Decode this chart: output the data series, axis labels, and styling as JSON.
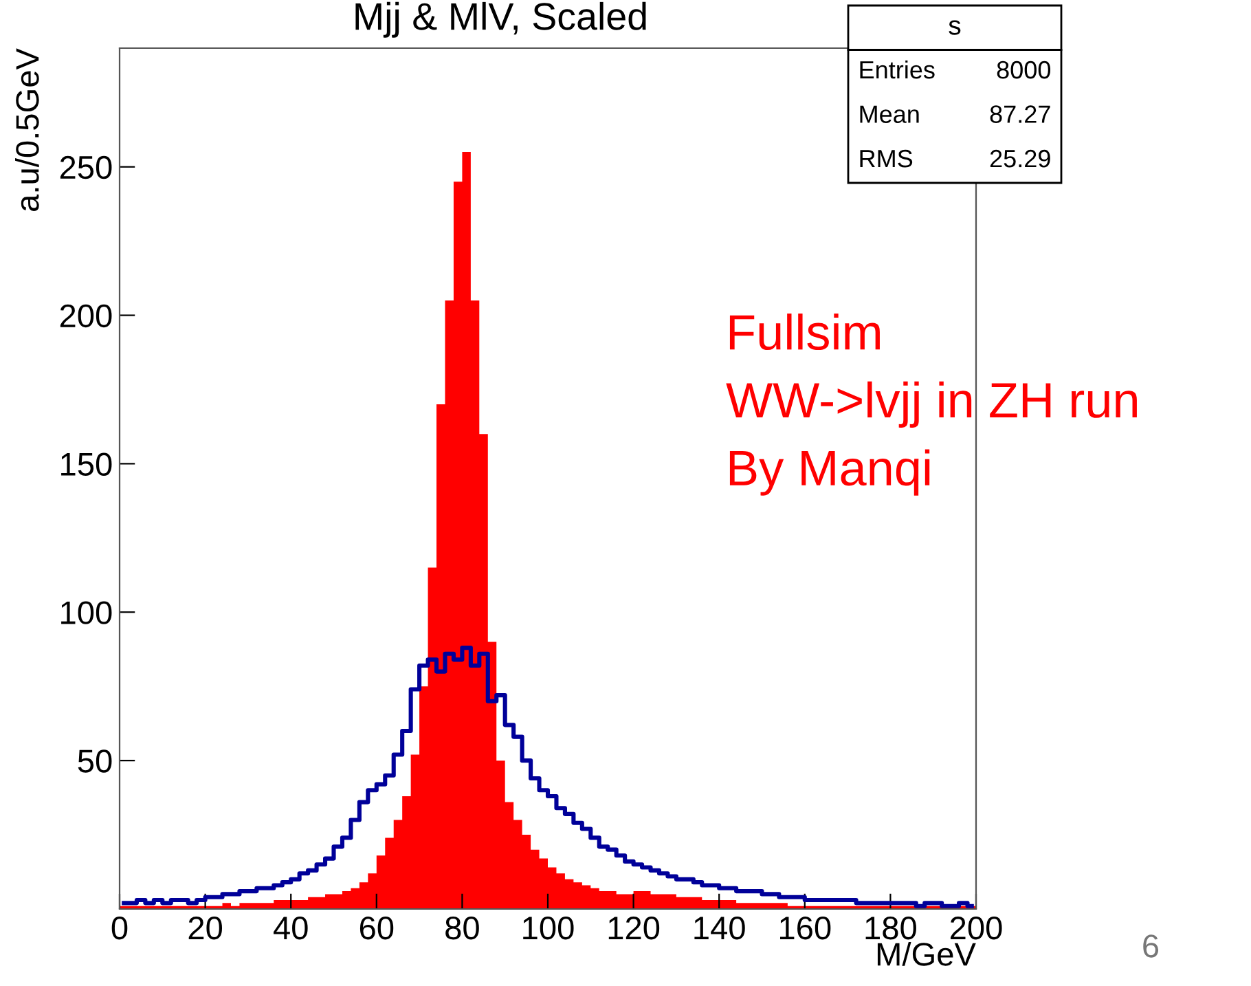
{
  "chart_data": {
    "type": "histogram",
    "title": "Mjj & MlV, Scaled",
    "xlabel": "M/GeV",
    "ylabel": "a.u/0.5GeV",
    "bins": [
      0,
      2,
      4,
      6,
      8,
      10,
      12,
      14,
      16,
      18,
      20,
      22,
      24,
      26,
      28,
      30,
      32,
      34,
      36,
      38,
      40,
      42,
      44,
      46,
      48,
      50,
      52,
      54,
      56,
      58,
      60,
      62,
      64,
      66,
      68,
      70,
      72,
      74,
      76,
      78,
      80,
      82,
      84,
      86,
      88,
      90,
      92,
      94,
      96,
      98,
      100,
      102,
      104,
      106,
      108,
      110,
      112,
      114,
      116,
      118,
      120,
      122,
      124,
      126,
      128,
      130,
      132,
      134,
      136,
      138,
      140,
      142,
      144,
      146,
      148,
      150,
      152,
      154,
      156,
      158,
      160,
      162,
      164,
      166,
      168,
      170,
      172,
      174,
      176,
      178,
      180,
      182,
      184,
      186,
      188,
      190,
      192,
      194,
      196,
      198,
      200
    ],
    "series": [
      {
        "color": "#ff0000",
        "values": [
          1,
          1,
          1,
          1,
          1,
          1,
          1,
          1,
          1,
          1,
          1,
          1,
          2,
          1,
          2,
          2,
          2,
          2,
          3,
          3,
          3,
          3,
          4,
          4,
          5,
          5,
          6,
          7,
          9,
          12,
          18,
          24,
          30,
          38,
          52,
          75,
          115,
          170,
          205,
          245,
          255,
          205,
          160,
          90,
          50,
          36,
          30,
          25,
          20,
          17,
          14,
          12,
          10,
          9,
          8,
          7,
          6,
          6,
          5,
          5,
          6,
          6,
          5,
          5,
          5,
          4,
          4,
          4,
          3,
          3,
          3,
          3,
          2,
          2,
          2,
          2,
          2,
          2,
          1,
          1,
          1,
          1,
          1,
          1,
          1,
          1,
          1,
          1,
          1,
          1,
          1,
          1,
          1,
          1,
          1,
          1,
          1,
          1,
          1,
          1
        ]
      },
      {
        "type": "step",
        "color": "#000099",
        "x": [
          1,
          3,
          5,
          7,
          9,
          11,
          13,
          15,
          17,
          19,
          21,
          23,
          25,
          27,
          29,
          31,
          33,
          35,
          37,
          39,
          41,
          43,
          45,
          47,
          49,
          51,
          53,
          55,
          57,
          59,
          61,
          63,
          65,
          67,
          69,
          71,
          73,
          75,
          77,
          79,
          81,
          83,
          85,
          87,
          89,
          91,
          93,
          95,
          97,
          99,
          101,
          103,
          105,
          107,
          109,
          111,
          113,
          115,
          117,
          119,
          121,
          123,
          125,
          127,
          129,
          131,
          133,
          135,
          137,
          139,
          141,
          143,
          145,
          147,
          149,
          151,
          153,
          155,
          157,
          159,
          161,
          163,
          165,
          167,
          169,
          171,
          173,
          175,
          177,
          179,
          181,
          183,
          185,
          187,
          189,
          191,
          193,
          195,
          197,
          199
        ],
        "values": [
          2,
          2,
          3,
          2,
          3,
          2,
          3,
          3,
          2,
          3,
          4,
          4,
          5,
          5,
          6,
          6,
          7,
          7,
          8,
          9,
          10,
          12,
          13,
          15,
          17,
          21,
          24,
          30,
          36,
          40,
          42,
          45,
          52,
          60,
          74,
          82,
          84,
          80,
          86,
          84,
          88,
          82,
          86,
          70,
          72,
          62,
          58,
          50,
          44,
          40,
          38,
          34,
          32,
          29,
          27,
          24,
          21,
          20,
          18,
          16,
          15,
          14,
          13,
          12,
          11,
          10,
          10,
          9,
          8,
          8,
          7,
          7,
          6,
          6,
          6,
          5,
          5,
          4,
          4,
          4,
          3,
          3,
          3,
          3,
          3,
          3,
          2,
          2,
          2,
          2,
          2,
          2,
          2,
          1,
          2,
          2,
          1,
          1,
          2,
          1
        ]
      }
    ],
    "xlim": [
      0,
      200
    ],
    "ylim": [
      0,
      290
    ],
    "xticks": [
      0,
      20,
      40,
      60,
      80,
      100,
      120,
      140,
      160,
      180,
      200
    ],
    "yticks": [
      50,
      100,
      150,
      200,
      250
    ],
    "annotations": [
      "s",
      "Entries",
      "8000",
      "Mean",
      "87.27",
      "RMS",
      "25.29",
      "Fullsim\nWW->lvjj in ZH run\nBy Manqi",
      "6"
    ]
  }
}
